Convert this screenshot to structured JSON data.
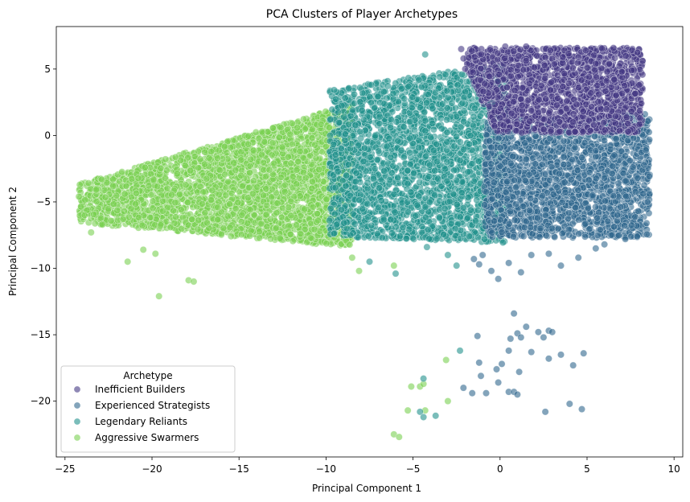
{
  "chart_data": {
    "type": "scatter",
    "title": "PCA Clusters of Player Archetypes",
    "xlabel": "Principal Component 1",
    "ylabel": "Principal Component 2",
    "xlim": [
      -25.5,
      10.5
    ],
    "ylim": [
      -24.2,
      8.2
    ],
    "xticks": [
      -25,
      -20,
      -15,
      -10,
      -5,
      0,
      5,
      10
    ],
    "yticks": [
      -20,
      -15,
      -10,
      -5,
      0,
      5
    ],
    "grid": false,
    "legend": {
      "title": "Archetype",
      "placement": "lower-left"
    },
    "series": [
      {
        "name": "Inefficient Builders",
        "color": "#443983",
        "region": {
          "x": [
            -2.5,
            8.2
          ],
          "y": [
            0.5,
            6.8
          ]
        },
        "points": [
          [
            0.3,
            6.7
          ],
          [
            1.5,
            6.7
          ],
          [
            2.9,
            6.4
          ],
          [
            5.5,
            5.4
          ],
          [
            7.0,
            4.8
          ],
          [
            -2.0,
            5.0
          ],
          [
            4.5,
            5.9
          ],
          [
            8.0,
            3.8
          ]
        ]
      },
      {
        "name": "Experienced Strategists",
        "color": "#31688e",
        "region": {
          "x": [
            -0.8,
            8.6
          ],
          "y": [
            -7.8,
            2.0
          ]
        },
        "points": [
          [
            -1.0,
            -9.0
          ],
          [
            -0.5,
            -10.2
          ],
          [
            -0.1,
            -10.8
          ],
          [
            1.2,
            -10.3
          ],
          [
            2.8,
            -8.9
          ],
          [
            4.5,
            -9.2
          ],
          [
            5.5,
            -8.5
          ],
          [
            6.0,
            -8.2
          ],
          [
            3.5,
            -9.8
          ],
          [
            1.8,
            -9.0
          ],
          [
            0.5,
            -9.6
          ],
          [
            -1.5,
            -9.3
          ],
          [
            -1.2,
            -9.7
          ],
          [
            7.2,
            -7.8
          ],
          [
            0.8,
            -13.4
          ],
          [
            1.5,
            -14.4
          ],
          [
            1.0,
            -14.9
          ],
          [
            2.2,
            -14.8
          ],
          [
            2.8,
            -14.7
          ],
          [
            3.0,
            -14.8
          ],
          [
            2.5,
            -15.2
          ],
          [
            1.2,
            -15.2
          ],
          [
            0.6,
            -15.3
          ],
          [
            -1.3,
            -15.1
          ],
          [
            0.5,
            -16.2
          ],
          [
            1.8,
            -16.3
          ],
          [
            2.8,
            -16.8
          ],
          [
            3.5,
            -16.5
          ],
          [
            4.2,
            -17.3
          ],
          [
            4.8,
            -16.4
          ],
          [
            -1.2,
            -17.1
          ],
          [
            0.1,
            -17.2
          ],
          [
            -0.2,
            -17.6
          ],
          [
            1.1,
            -17.8
          ],
          [
            -1.1,
            -18.1
          ],
          [
            -0.1,
            -18.6
          ],
          [
            -1.6,
            -19.4
          ],
          [
            -0.8,
            -19.4
          ],
          [
            0.5,
            -19.3
          ],
          [
            0.8,
            -19.3
          ],
          [
            1.0,
            -19.5
          ],
          [
            4.0,
            -20.2
          ],
          [
            4.7,
            -20.6
          ],
          [
            2.6,
            -20.8
          ],
          [
            -2.1,
            -19.0
          ]
        ]
      },
      {
        "name": "Legendary Reliants",
        "color": "#21918c",
        "region": {
          "x": [
            -9.5,
            0.5
          ],
          "y": [
            -8.3,
            5.5
          ]
        },
        "points": [
          [
            -4.3,
            6.1
          ],
          [
            -3.0,
            -9.0
          ],
          [
            -2.5,
            -9.8
          ],
          [
            -6.0,
            -10.4
          ],
          [
            -7.5,
            -9.5
          ],
          [
            -4.2,
            -8.4
          ],
          [
            -2.3,
            -16.2
          ],
          [
            -4.4,
            -18.3
          ],
          [
            -4.6,
            -20.8
          ],
          [
            -4.4,
            -21.2
          ],
          [
            -3.7,
            -21.1
          ],
          [
            -9.8,
            -6.4
          ]
        ]
      },
      {
        "name": "Aggressive Swarmers",
        "color": "#7ad151",
        "region": {
          "x": [
            -24.0,
            -8.5
          ],
          "y": [
            -8.6,
            2.5
          ]
        },
        "points": [
          [
            -24.2,
            -4.6
          ],
          [
            -23.5,
            -7.3
          ],
          [
            -21.4,
            -9.5
          ],
          [
            -19.6,
            -12.1
          ],
          [
            -17.9,
            -10.9
          ],
          [
            -17.6,
            -11.0
          ],
          [
            -20.5,
            -8.6
          ],
          [
            -19.8,
            -8.9
          ],
          [
            -8.5,
            -9.2
          ],
          [
            -8.1,
            -10.2
          ],
          [
            -6.1,
            -9.8
          ],
          [
            -5.1,
            -18.9
          ],
          [
            -4.6,
            -18.9
          ],
          [
            -4.4,
            -18.7
          ],
          [
            -3.1,
            -16.9
          ],
          [
            -3.0,
            -20.0
          ],
          [
            -6.1,
            -22.5
          ],
          [
            -5.8,
            -22.7
          ],
          [
            -5.3,
            -20.7
          ],
          [
            -4.3,
            -20.7
          ]
        ]
      }
    ]
  }
}
